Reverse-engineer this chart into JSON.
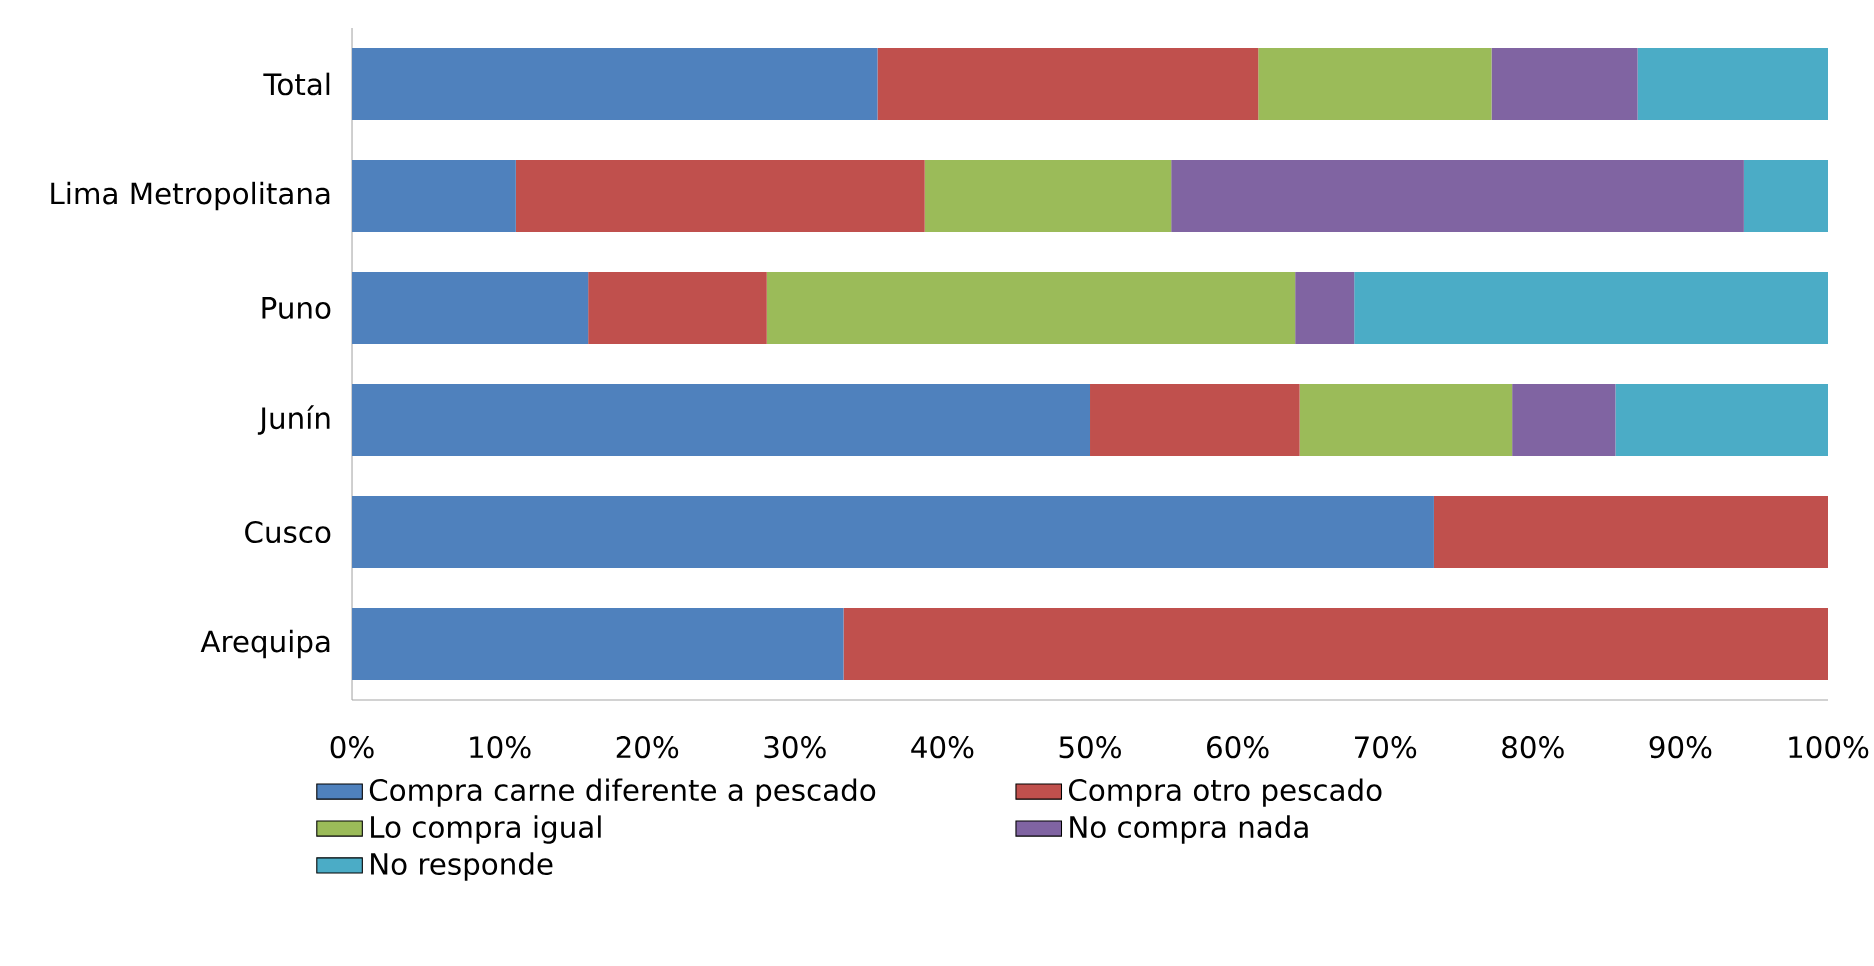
{
  "chart_data": {
    "type": "bar",
    "orientation": "horizontal",
    "stacked": true,
    "legend": "bottom",
    "categories": [
      "Total",
      "Lima Metropolitana",
      "Puno",
      "Junín",
      "Cusco",
      "Arequipa"
    ],
    "series": [
      {
        "name": "Compra carne diferente a pescado",
        "color": "#4f81bd",
        "values": [
          35.6,
          11.1,
          16.0,
          50.0,
          73.3,
          33.3
        ]
      },
      {
        "name": "Compra otro pescado",
        "color": "#c0504d",
        "values": [
          25.8,
          27.7,
          12.1,
          14.2,
          26.7,
          66.7
        ]
      },
      {
        "name": "Lo compra igual",
        "color": "#9bbb59",
        "values": [
          15.8,
          16.7,
          35.8,
          14.4,
          null,
          null
        ]
      },
      {
        "name": "No compra nada",
        "color": "#8064a2",
        "values": [
          9.9,
          38.8,
          4.0,
          7.0,
          null,
          null
        ]
      },
      {
        "name": "No responde",
        "color": "#4bacc6",
        "values": [
          12.9,
          5.7,
          32.1,
          14.4,
          null,
          null
        ]
      }
    ],
    "xlim": [
      0,
      100
    ],
    "xticks": [
      {
        "value": 0,
        "label": "0%"
      },
      {
        "value": 10,
        "label": "10%"
      },
      {
        "value": 20,
        "label": "20%"
      },
      {
        "value": 30,
        "label": "30%"
      },
      {
        "value": 40,
        "label": "40%"
      },
      {
        "value": 50,
        "label": "50%"
      },
      {
        "value": 60,
        "label": "60%"
      },
      {
        "value": 70,
        "label": "70%"
      },
      {
        "value": 80,
        "label": "80%"
      },
      {
        "value": 90,
        "label": "90%"
      },
      {
        "value": 100,
        "label": "100%"
      }
    ]
  }
}
